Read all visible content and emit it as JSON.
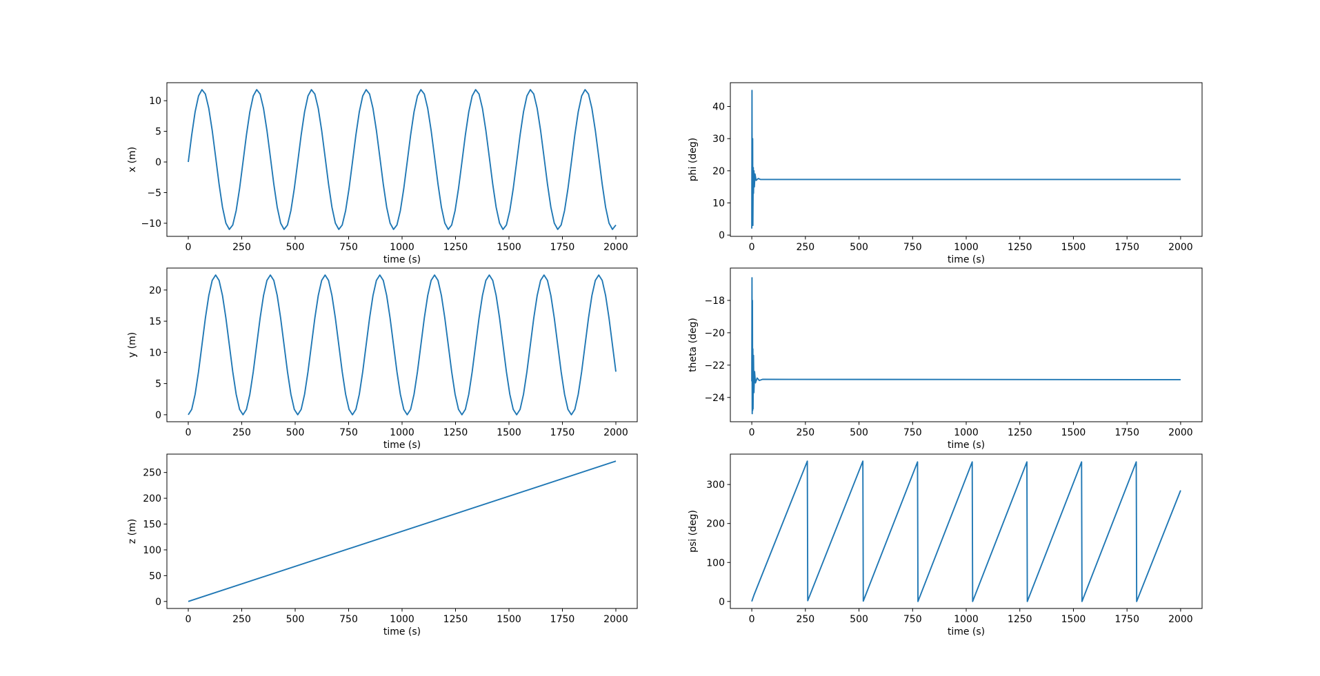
{
  "chart_data": [
    {
      "type": "line",
      "ylabel": "x (m)",
      "xlabel": "time (s)",
      "x": [
        0,
        16,
        32,
        48,
        64,
        80,
        96,
        112,
        128,
        144,
        160,
        176,
        192,
        208,
        224,
        240,
        256,
        272,
        288,
        304,
        320,
        336,
        352,
        368,
        384,
        400,
        416,
        432,
        448,
        464,
        480,
        496,
        512,
        528,
        544,
        560,
        576,
        592,
        608,
        624,
        640,
        656,
        672,
        688,
        704,
        720,
        736,
        752,
        768,
        784,
        800,
        816,
        832,
        848,
        864,
        880,
        896,
        912,
        928,
        944,
        960,
        976,
        992,
        1008,
        1024,
        1040,
        1056,
        1072,
        1088,
        1104,
        1120,
        1136,
        1152,
        1168,
        1184,
        1200,
        1216,
        1232,
        1248,
        1264,
        1280,
        1296,
        1312,
        1328,
        1344,
        1360,
        1376,
        1392,
        1408,
        1424,
        1440,
        1456,
        1472,
        1488,
        1504,
        1520,
        1536,
        1552,
        1568,
        1584,
        1600,
        1616,
        1632,
        1648,
        1664,
        1680,
        1696,
        1712,
        1728,
        1744,
        1760,
        1776,
        1792,
        1808,
        1824,
        1840,
        1856,
        1872,
        1888,
        1904,
        1920,
        1936,
        1952,
        1968,
        1984,
        2000
      ],
      "series": [
        {
          "color": "#1f77b4",
          "values": [
            0,
            4.39,
            8.18,
            10.78,
            11.8,
            11.09,
            8.74,
            5.13,
            0.8,
            -3.59,
            -7.38,
            -9.98,
            -11.0,
            -10.29,
            -7.94,
            -4.33,
            0,
            4.39,
            8.18,
            10.78,
            11.8,
            11.09,
            8.74,
            5.13,
            0.8,
            -3.59,
            -7.38,
            -9.98,
            -11.0,
            -10.29,
            -7.94,
            -4.33,
            0,
            4.39,
            8.18,
            10.78,
            11.8,
            11.09,
            8.74,
            5.13,
            0.8,
            -3.59,
            -7.38,
            -9.98,
            -11.0,
            -10.29,
            -7.94,
            -4.33,
            0,
            4.39,
            8.18,
            10.78,
            11.8,
            11.09,
            8.74,
            5.13,
            0.8,
            -3.59,
            -7.38,
            -9.98,
            -11.0,
            -10.29,
            -7.94,
            -4.33,
            0,
            4.39,
            8.18,
            10.78,
            11.8,
            11.09,
            8.74,
            5.13,
            0.8,
            -3.59,
            -7.38,
            -9.98,
            -11.0,
            -10.29,
            -7.94,
            -4.33,
            0,
            4.39,
            8.18,
            10.78,
            11.8,
            11.09,
            8.74,
            5.13,
            0.8,
            -3.59,
            -7.38,
            -9.98,
            -11.0,
            -10.29,
            -7.94,
            -4.33,
            0,
            4.39,
            8.18,
            10.78,
            11.8,
            11.09,
            8.74,
            5.13,
            0.8,
            -3.59,
            -7.38,
            -9.98,
            -11.0,
            -10.29,
            -7.94,
            -4.33,
            0,
            4.39,
            8.18,
            10.78,
            11.8,
            11.09,
            8.74,
            5.13,
            0.8,
            -3.59,
            -7.38,
            -9.98,
            -11.0,
            -10.29
          ]
        }
      ],
      "xlim": [
        -100,
        2100
      ],
      "xticks": [
        0,
        250,
        500,
        750,
        1000,
        1250,
        1500,
        1750,
        2000
      ],
      "ylim": [
        -12.14,
        12.94
      ],
      "yticks": [
        {
          "value": -10,
          "label": "−10"
        },
        {
          "value": -5,
          "label": "−5"
        },
        0,
        5,
        10
      ]
    },
    {
      "type": "line",
      "ylabel": "phi (deg)",
      "xlabel": "time (s)",
      "x": [
        0,
        1,
        2,
        4,
        5,
        7,
        8,
        10,
        12,
        15,
        20,
        30,
        40,
        2000
      ],
      "series": [
        {
          "color": "#1f77b4",
          "values": [
            2,
            45,
            5,
            30,
            3,
            21,
            13,
            20,
            15,
            19,
            17,
            17.6,
            17.3,
            17.3
          ]
        }
      ],
      "xlim": [
        -100,
        2100
      ],
      "xticks": [
        0,
        250,
        500,
        750,
        1000,
        1250,
        1500,
        1750,
        2000
      ],
      "ylim": [
        -0.4,
        47.4
      ],
      "yticks": [
        0,
        10,
        20,
        30,
        40
      ]
    },
    {
      "type": "line",
      "ylabel": "y (m)",
      "xlabel": "time (s)",
      "x": [
        0,
        16,
        32,
        48,
        64,
        80,
        96,
        112,
        128,
        144,
        160,
        176,
        192,
        208,
        224,
        240,
        256,
        272,
        288,
        304,
        320,
        336,
        352,
        368,
        384,
        400,
        416,
        432,
        448,
        464,
        480,
        496,
        512,
        528,
        544,
        560,
        576,
        592,
        608,
        624,
        640,
        656,
        672,
        688,
        704,
        720,
        736,
        752,
        768,
        784,
        800,
        816,
        832,
        848,
        864,
        880,
        896,
        912,
        928,
        944,
        960,
        976,
        992,
        1008,
        1024,
        1040,
        1056,
        1072,
        1088,
        1104,
        1120,
        1136,
        1152,
        1168,
        1184,
        1200,
        1216,
        1232,
        1248,
        1264,
        1280,
        1296,
        1312,
        1328,
        1344,
        1360,
        1376,
        1392,
        1408,
        1424,
        1440,
        1456,
        1472,
        1488,
        1504,
        1520,
        1536,
        1552,
        1568,
        1584,
        1600,
        1616,
        1632,
        1648,
        1664,
        1680,
        1696,
        1712,
        1728,
        1744,
        1760,
        1776,
        1792,
        1808,
        1824,
        1840,
        1856,
        1872,
        1888,
        1904,
        1920,
        1936,
        1952,
        1968,
        1984,
        2000
      ],
      "series": [
        {
          "color": "#1f77b4",
          "values": [
            0,
            0.85,
            3.28,
            6.91,
            11.2,
            15.49,
            19.12,
            21.55,
            22.4,
            21.55,
            19.12,
            15.49,
            11.2,
            6.91,
            3.28,
            0.85,
            0,
            0.85,
            3.28,
            6.91,
            11.2,
            15.49,
            19.12,
            21.55,
            22.4,
            21.55,
            19.12,
            15.49,
            11.2,
            6.91,
            3.28,
            0.85,
            0,
            0.85,
            3.28,
            6.91,
            11.2,
            15.49,
            19.12,
            21.55,
            22.4,
            21.55,
            19.12,
            15.49,
            11.2,
            6.91,
            3.28,
            0.85,
            0,
            0.85,
            3.28,
            6.91,
            11.2,
            15.49,
            19.12,
            21.55,
            22.4,
            21.55,
            19.12,
            15.49,
            11.2,
            6.91,
            3.28,
            0.85,
            0,
            0.85,
            3.28,
            6.91,
            11.2,
            15.49,
            19.12,
            21.55,
            22.4,
            21.55,
            19.12,
            15.49,
            11.2,
            6.91,
            3.28,
            0.85,
            0,
            0.85,
            3.28,
            6.91,
            11.2,
            15.49,
            19.12,
            21.55,
            22.4,
            21.55,
            19.12,
            15.49,
            11.2,
            6.91,
            3.28,
            0.85,
            0,
            0.85,
            3.28,
            6.91,
            11.2,
            15.49,
            19.12,
            21.55,
            22.4,
            21.55,
            19.12,
            15.49,
            11.2,
            6.91,
            3.28,
            0.85,
            0,
            0.85,
            3.28,
            6.91,
            11.2,
            15.49,
            19.12,
            21.55,
            22.4,
            21.55,
            19.12,
            15.49,
            11.2,
            6.91
          ]
        }
      ],
      "xlim": [
        -100,
        2100
      ],
      "xticks": [
        0,
        250,
        500,
        750,
        1000,
        1250,
        1500,
        1750,
        2000
      ],
      "ylim": [
        -1.12,
        23.52
      ],
      "yticks": [
        0,
        5,
        10,
        15,
        20
      ]
    },
    {
      "type": "line",
      "ylabel": "theta (deg)",
      "xlabel": "time (s)",
      "x": [
        0,
        1,
        2,
        3,
        4,
        5,
        6,
        8,
        10,
        13,
        17,
        25,
        35,
        50,
        2000
      ],
      "series": [
        {
          "color": "#1f77b4",
          "values": [
            -23,
            -16.6,
            -25,
            -18,
            -24.8,
            -21,
            -24.7,
            -21.4,
            -23.7,
            -22.4,
            -23.1,
            -22.8,
            -22.95,
            -22.88,
            -22.9
          ]
        }
      ],
      "xlim": [
        -100,
        2100
      ],
      "xticks": [
        0,
        250,
        500,
        750,
        1000,
        1250,
        1500,
        1750,
        2000
      ],
      "ylim": [
        -25.5,
        -16.0
      ],
      "yticks": [
        {
          "value": -24,
          "label": "−24"
        },
        {
          "value": -22,
          "label": "−22"
        },
        {
          "value": -20,
          "label": "−20"
        },
        {
          "value": -18,
          "label": "−18"
        }
      ]
    },
    {
      "type": "line",
      "ylabel": "z (m)",
      "xlabel": "time (s)",
      "x": [
        0,
        2000
      ],
      "series": [
        {
          "color": "#1f77b4",
          "values": [
            0,
            272
          ]
        }
      ],
      "xlim": [
        -100,
        2100
      ],
      "xticks": [
        0,
        250,
        500,
        750,
        1000,
        1250,
        1500,
        1750,
        2000
      ],
      "ylim": [
        -13.6,
        285.6
      ],
      "yticks": [
        0,
        50,
        100,
        150,
        200,
        250
      ]
    },
    {
      "type": "line",
      "ylabel": "psi (deg)",
      "xlabel": "time (s)",
      "x": [
        0,
        3,
        10,
        259,
        261,
        518,
        520,
        773,
        775,
        1028,
        1030,
        1283,
        1285,
        1538,
        1540,
        1793,
        1795,
        2000
      ],
      "series": [
        {
          "color": "#1f77b4",
          "values": [
            0,
            5,
            16,
            360,
            2,
            360,
            1,
            358,
            0,
            358,
            0,
            358,
            0,
            358,
            0,
            358,
            0,
            285
          ]
        }
      ],
      "xlim": [
        -100,
        2100
      ],
      "xticks": [
        0,
        250,
        500,
        750,
        1000,
        1250,
        1500,
        1750,
        2000
      ],
      "ylim": [
        -18,
        378
      ],
      "yticks": [
        0,
        100,
        200,
        300
      ]
    }
  ]
}
